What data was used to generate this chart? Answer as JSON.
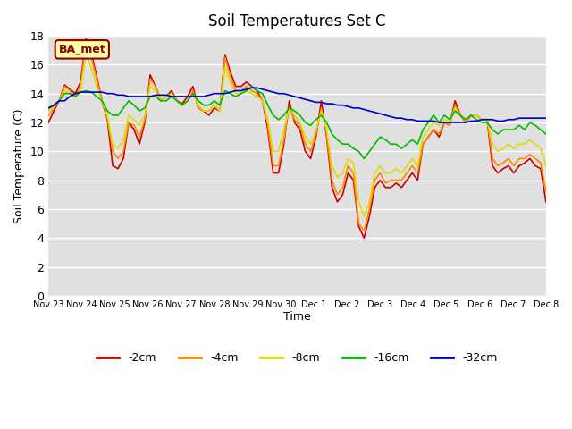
{
  "title": "Soil Temperatures Set C",
  "xlabel": "Time",
  "ylabel": "Soil Temperature (C)",
  "ylim": [
    0,
    18
  ],
  "annotation": "BA_met",
  "background_color": "#e0e0e0",
  "legend_entries": [
    "-2cm",
    "-4cm",
    "-8cm",
    "-16cm",
    "-32cm"
  ],
  "line_colors": [
    "#cc0000",
    "#ff8800",
    "#dddd00",
    "#00bb00",
    "#0000cc"
  ],
  "xtick_labels": [
    "Nov 23",
    "Nov 24",
    "Nov 25",
    "Nov 26",
    "Nov 27",
    "Nov 28",
    "Nov 29",
    "Nov 30",
    "Dec 1",
    "Dec 2",
    "Dec 3",
    "Dec 4",
    "Dec 5",
    "Dec 6",
    "Dec 7",
    "Dec 8"
  ],
  "series": {
    "neg2cm": [
      12.0,
      12.8,
      13.5,
      14.6,
      14.3,
      14.0,
      14.8,
      17.8,
      16.8,
      15.2,
      13.5,
      12.2,
      9.0,
      8.8,
      9.5,
      12.0,
      11.5,
      10.5,
      12.0,
      15.3,
      14.5,
      13.5,
      13.8,
      14.2,
      13.5,
      13.3,
      13.8,
      14.5,
      13.0,
      12.8,
      12.5,
      13.0,
      12.8,
      16.7,
      15.5,
      14.5,
      14.5,
      14.8,
      14.5,
      14.2,
      13.5,
      11.5,
      8.5,
      8.5,
      10.5,
      13.5,
      12.0,
      11.5,
      10.0,
      9.5,
      11.0,
      13.5,
      11.0,
      7.5,
      6.5,
      7.0,
      8.5,
      8.0,
      4.8,
      4.0,
      5.5,
      7.5,
      8.0,
      7.5,
      7.5,
      7.8,
      7.5,
      8.0,
      8.5,
      8.0,
      10.5,
      11.0,
      11.5,
      11.0,
      12.0,
      11.8,
      13.5,
      12.5,
      12.0,
      12.5,
      12.5,
      12.2,
      12.2,
      9.0,
      8.5,
      8.8,
      9.0,
      8.5,
      9.0,
      9.2,
      9.5,
      9.0,
      8.8,
      6.5
    ],
    "neg4cm": [
      12.5,
      13.0,
      13.5,
      14.5,
      14.2,
      13.8,
      14.5,
      17.5,
      16.5,
      15.0,
      13.5,
      12.3,
      10.0,
      9.5,
      10.0,
      12.0,
      11.8,
      11.0,
      12.2,
      15.0,
      14.5,
      13.5,
      13.8,
      14.0,
      13.5,
      13.2,
      13.5,
      14.2,
      13.0,
      12.8,
      12.8,
      13.2,
      12.8,
      16.5,
      15.2,
      14.2,
      14.2,
      14.5,
      14.2,
      14.0,
      13.5,
      11.8,
      9.0,
      9.0,
      10.8,
      13.0,
      12.2,
      11.8,
      10.5,
      10.0,
      11.2,
      13.0,
      11.2,
      8.0,
      7.0,
      7.5,
      9.0,
      8.5,
      5.0,
      4.5,
      6.0,
      8.0,
      8.5,
      7.8,
      8.0,
      8.0,
      8.0,
      8.5,
      9.0,
      8.5,
      10.5,
      11.0,
      11.5,
      11.2,
      12.0,
      11.8,
      13.2,
      12.5,
      12.0,
      12.5,
      12.5,
      12.2,
      12.2,
      9.5,
      9.0,
      9.2,
      9.5,
      9.0,
      9.5,
      9.5,
      9.8,
      9.5,
      9.2,
      7.2
    ],
    "neg8cm": [
      12.8,
      13.2,
      13.5,
      14.2,
      14.0,
      13.8,
      14.2,
      16.8,
      15.8,
      14.5,
      13.5,
      12.5,
      10.5,
      10.2,
      10.8,
      12.5,
      12.2,
      11.8,
      12.5,
      14.5,
      14.2,
      13.5,
      13.8,
      14.0,
      13.5,
      13.2,
      13.5,
      14.0,
      13.2,
      12.8,
      12.8,
      13.2,
      12.8,
      15.8,
      14.8,
      14.0,
      14.0,
      14.2,
      14.0,
      13.8,
      13.5,
      12.2,
      10.0,
      10.0,
      11.5,
      13.0,
      12.5,
      12.0,
      11.0,
      10.5,
      11.5,
      12.8,
      11.5,
      9.0,
      8.2,
      8.5,
      9.5,
      9.2,
      6.5,
      5.5,
      6.5,
      8.5,
      9.0,
      8.5,
      8.5,
      8.8,
      8.5,
      9.0,
      9.5,
      9.0,
      11.0,
      11.5,
      12.0,
      11.8,
      12.2,
      12.0,
      13.0,
      12.5,
      12.2,
      12.5,
      12.5,
      12.2,
      12.2,
      10.5,
      10.0,
      10.2,
      10.5,
      10.2,
      10.5,
      10.5,
      10.8,
      10.5,
      10.2,
      9.0
    ],
    "neg16cm": [
      13.0,
      13.2,
      13.5,
      14.0,
      14.0,
      13.8,
      14.1,
      14.2,
      14.1,
      13.8,
      13.5,
      12.8,
      12.5,
      12.5,
      13.0,
      13.5,
      13.2,
      12.8,
      13.0,
      13.8,
      13.8,
      13.5,
      13.5,
      13.8,
      13.5,
      13.2,
      13.5,
      14.0,
      13.5,
      13.2,
      13.2,
      13.5,
      13.2,
      14.2,
      14.0,
      13.8,
      14.0,
      14.2,
      14.5,
      14.2,
      14.0,
      13.2,
      12.5,
      12.2,
      12.5,
      13.0,
      12.8,
      12.5,
      12.0,
      11.8,
      12.2,
      12.5,
      12.0,
      11.2,
      10.8,
      10.5,
      10.5,
      10.2,
      10.0,
      9.5,
      10.0,
      10.5,
      11.0,
      10.8,
      10.5,
      10.5,
      10.2,
      10.5,
      10.8,
      10.5,
      11.5,
      12.0,
      12.5,
      12.0,
      12.5,
      12.2,
      12.8,
      12.5,
      12.2,
      12.5,
      12.2,
      12.0,
      12.0,
      11.5,
      11.2,
      11.5,
      11.5,
      11.5,
      11.8,
      11.5,
      12.0,
      11.8,
      11.5,
      11.2
    ],
    "neg32cm": [
      13.0,
      13.2,
      13.5,
      13.5,
      13.8,
      14.0,
      14.1,
      14.1,
      14.1,
      14.1,
      14.1,
      14.0,
      14.0,
      13.9,
      13.9,
      13.8,
      13.8,
      13.8,
      13.8,
      13.8,
      13.9,
      13.9,
      13.9,
      13.8,
      13.8,
      13.8,
      13.8,
      13.8,
      13.8,
      13.8,
      13.9,
      14.0,
      14.0,
      14.0,
      14.1,
      14.2,
      14.2,
      14.3,
      14.4,
      14.4,
      14.3,
      14.2,
      14.1,
      14.0,
      14.0,
      13.9,
      13.8,
      13.7,
      13.6,
      13.5,
      13.4,
      13.4,
      13.3,
      13.3,
      13.2,
      13.2,
      13.1,
      13.0,
      13.0,
      12.9,
      12.8,
      12.7,
      12.6,
      12.5,
      12.4,
      12.3,
      12.3,
      12.2,
      12.2,
      12.1,
      12.1,
      12.1,
      12.1,
      12.0,
      12.0,
      12.0,
      12.0,
      12.0,
      12.0,
      12.1,
      12.1,
      12.2,
      12.2,
      12.2,
      12.1,
      12.1,
      12.2,
      12.2,
      12.3,
      12.3,
      12.3,
      12.3,
      12.3,
      12.3
    ]
  }
}
